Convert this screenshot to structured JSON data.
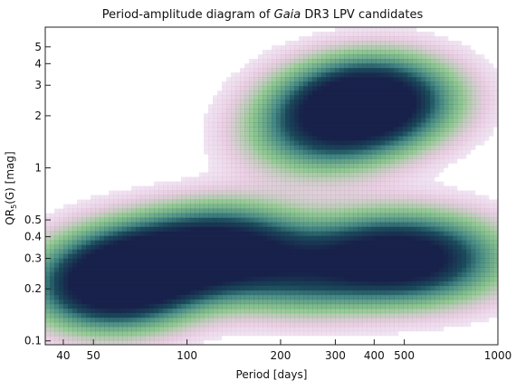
{
  "chart_data": {
    "type": "heatmap",
    "title_parts": [
      "Period-amplitude diagram of ",
      "Gaia",
      " DR3 LPV candidates"
    ],
    "xlabel": "Period [days]",
    "ylabel_main": "QR",
    "ylabel_sub": "5",
    "ylabel_rest": "(G) [mag]",
    "x_scale": "log",
    "y_scale": "log",
    "xlim": [
      35,
      1000
    ],
    "ylim": [
      0.095,
      6.5
    ],
    "x_ticks": [
      {
        "value": 40,
        "label": "40"
      },
      {
        "value": 50,
        "label": "50"
      },
      {
        "value": 100,
        "label": "100"
      },
      {
        "value": 200,
        "label": "200"
      },
      {
        "value": 300,
        "label": "300"
      },
      {
        "value": 400,
        "label": "400"
      },
      {
        "value": 500,
        "label": "500"
      },
      {
        "value": 1000,
        "label": "1000"
      }
    ],
    "y_ticks": [
      {
        "value": 0.1,
        "label": "0.1"
      },
      {
        "value": 0.2,
        "label": "0.2"
      },
      {
        "value": 0.3,
        "label": "0.3"
      },
      {
        "value": 0.4,
        "label": "0.4"
      },
      {
        "value": 0.5,
        "label": "0.5"
      },
      {
        "value": 1,
        "label": "1"
      },
      {
        "value": 2,
        "label": "2"
      },
      {
        "value": 3,
        "label": "3"
      },
      {
        "value": 4,
        "label": "4"
      },
      {
        "value": 5,
        "label": "5"
      }
    ],
    "density_clusters": [
      {
        "period": 55,
        "amplitude": 0.2,
        "weight": 1.0
      },
      {
        "period": 70,
        "amplitude": 0.27,
        "weight": 0.85
      },
      {
        "period": 140,
        "amplitude": 0.35,
        "weight": 0.8
      },
      {
        "period": 100,
        "amplitude": 0.3,
        "weight": 0.55
      },
      {
        "period": 230,
        "amplitude": 0.25,
        "weight": 0.55
      },
      {
        "period": 420,
        "amplitude": 0.3,
        "weight": 0.95
      },
      {
        "period": 650,
        "amplitude": 0.3,
        "weight": 0.6
      },
      {
        "period": 340,
        "amplitude": 2.2,
        "weight": 1.0
      },
      {
        "period": 430,
        "amplitude": 2.6,
        "weight": 0.7
      },
      {
        "period": 260,
        "amplitude": 1.5,
        "weight": 0.45
      }
    ],
    "colormap": [
      "#d6c8f0",
      "#c27ab0",
      "#3a9a3a",
      "#1e6e6a",
      "#17214a"
    ]
  }
}
